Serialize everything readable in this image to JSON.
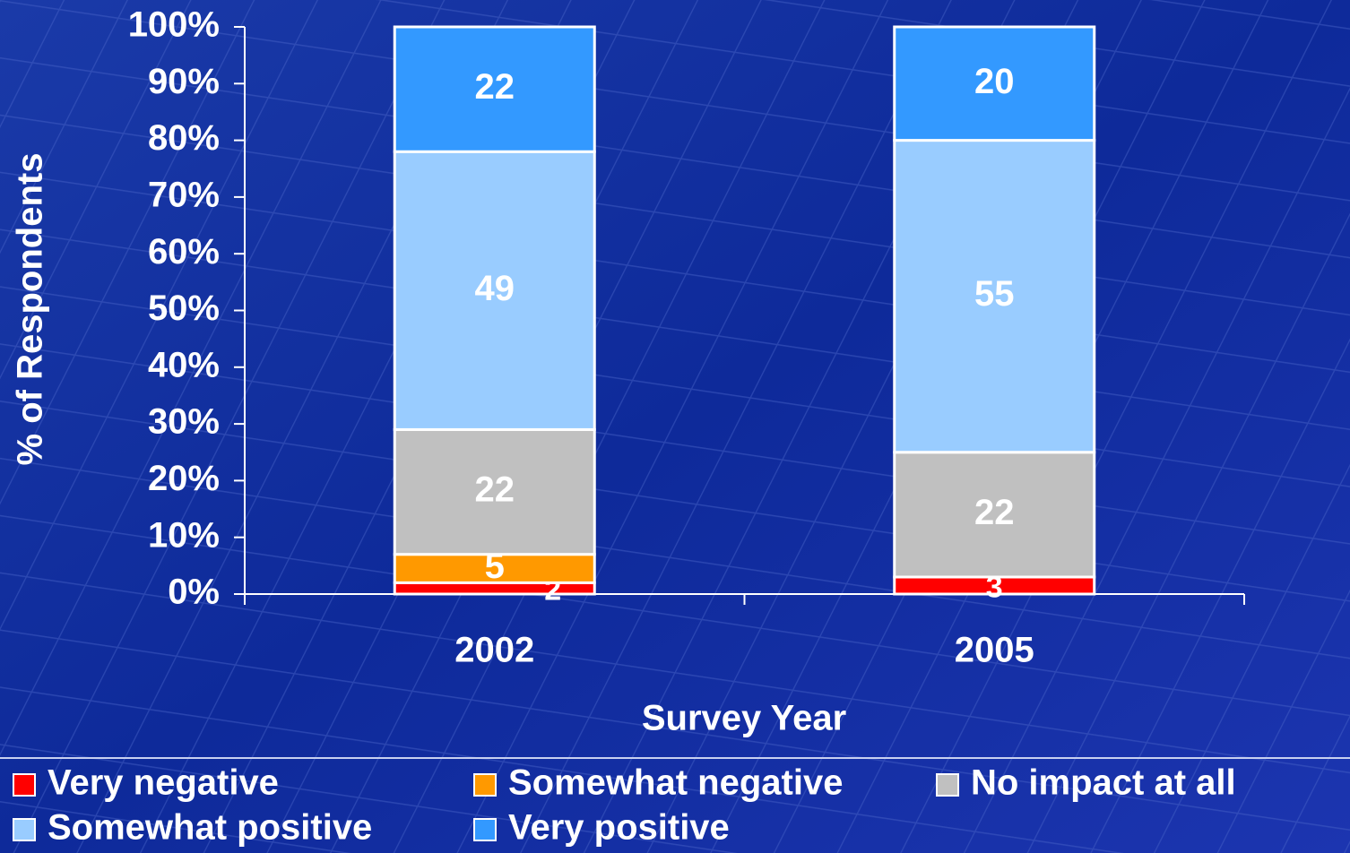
{
  "chart_data": {
    "type": "stacked_bar",
    "categories": [
      "2002",
      "2005"
    ],
    "series": [
      {
        "name": "Very negative",
        "color": "#ff0000",
        "values": [
          2,
          3
        ]
      },
      {
        "name": "Somewhat negative",
        "color": "#ff9900",
        "values": [
          5,
          null
        ]
      },
      {
        "name": "No impact at all",
        "color": "#c0c0c0",
        "values": [
          22,
          22
        ]
      },
      {
        "name": "Somewhat positive",
        "color": "#99ccff",
        "values": [
          49,
          55
        ]
      },
      {
        "name": "Very positive",
        "color": "#3399ff",
        "values": [
          22,
          20
        ]
      }
    ],
    "y_axis_label": "% of Respondents",
    "x_axis_label": "Survey Year",
    "ylim": [
      0,
      100
    ],
    "yticks": [
      {
        "value": 0,
        "label": "0%"
      },
      {
        "value": 10,
        "label": "10%"
      },
      {
        "value": 20,
        "label": "20%"
      },
      {
        "value": 30,
        "label": "30%"
      },
      {
        "value": 40,
        "label": "40%"
      },
      {
        "value": 50,
        "label": "50%"
      },
      {
        "value": 60,
        "label": "60%"
      },
      {
        "value": 70,
        "label": "70%"
      },
      {
        "value": 80,
        "label": "80%"
      },
      {
        "value": 90,
        "label": "90%"
      },
      {
        "value": 100,
        "label": "100%"
      }
    ],
    "legend": "bottom"
  }
}
